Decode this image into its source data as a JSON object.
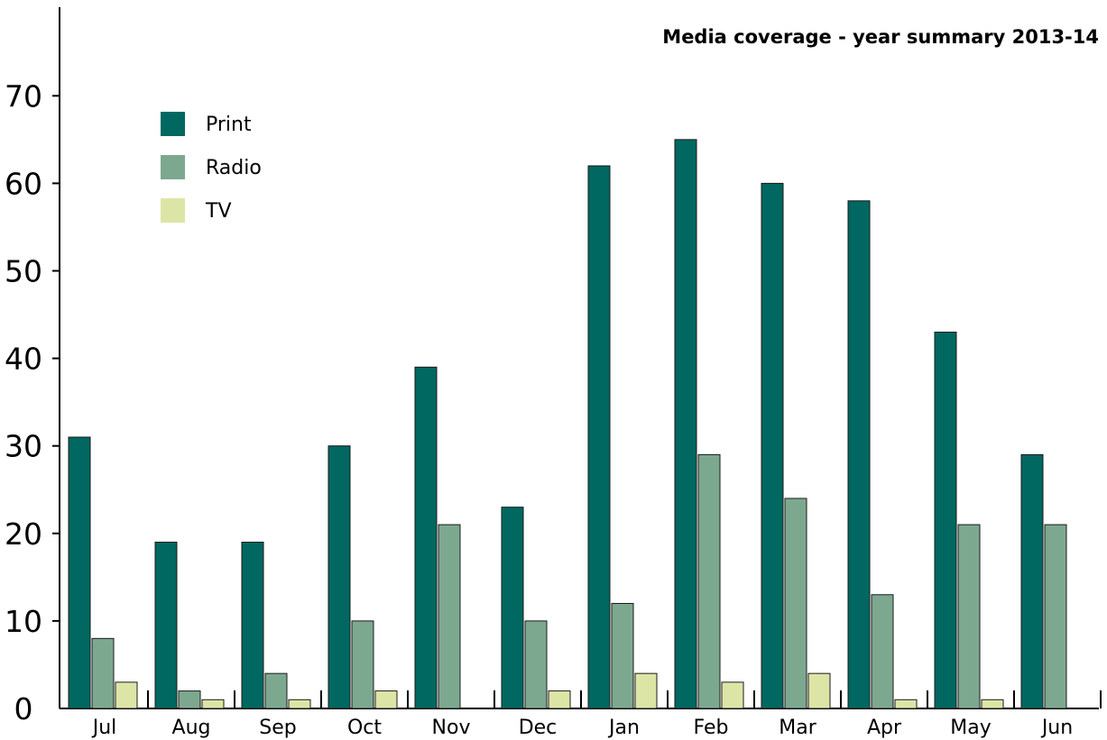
{
  "chart_data": {
    "type": "bar",
    "title": "Media coverage - year summary 2013-14",
    "xlabel": "",
    "ylabel": "",
    "categories": [
      "Jul",
      "Aug",
      "Sep",
      "Oct",
      "Nov",
      "Dec",
      "Jan",
      "Feb",
      "Mar",
      "Apr",
      "May",
      "Jun"
    ],
    "series": [
      {
        "name": "Print",
        "color": "#006860",
        "values": [
          31,
          19,
          19,
          30,
          39,
          23,
          62,
          65,
          60,
          58,
          43,
          29
        ]
      },
      {
        "name": "Radio",
        "color": "#7da890",
        "values": [
          8,
          2,
          4,
          10,
          21,
          10,
          12,
          29,
          24,
          13,
          21,
          21
        ]
      },
      {
        "name": "TV",
        "color": "#dde5a6",
        "values": [
          3,
          1,
          1,
          2,
          0,
          2,
          4,
          3,
          4,
          1,
          1,
          0
        ]
      }
    ],
    "yticks": [
      0,
      10,
      20,
      30,
      40,
      50,
      60,
      70
    ],
    "ylim": [
      0,
      80
    ],
    "grid": false,
    "legend_position": "top-left"
  }
}
